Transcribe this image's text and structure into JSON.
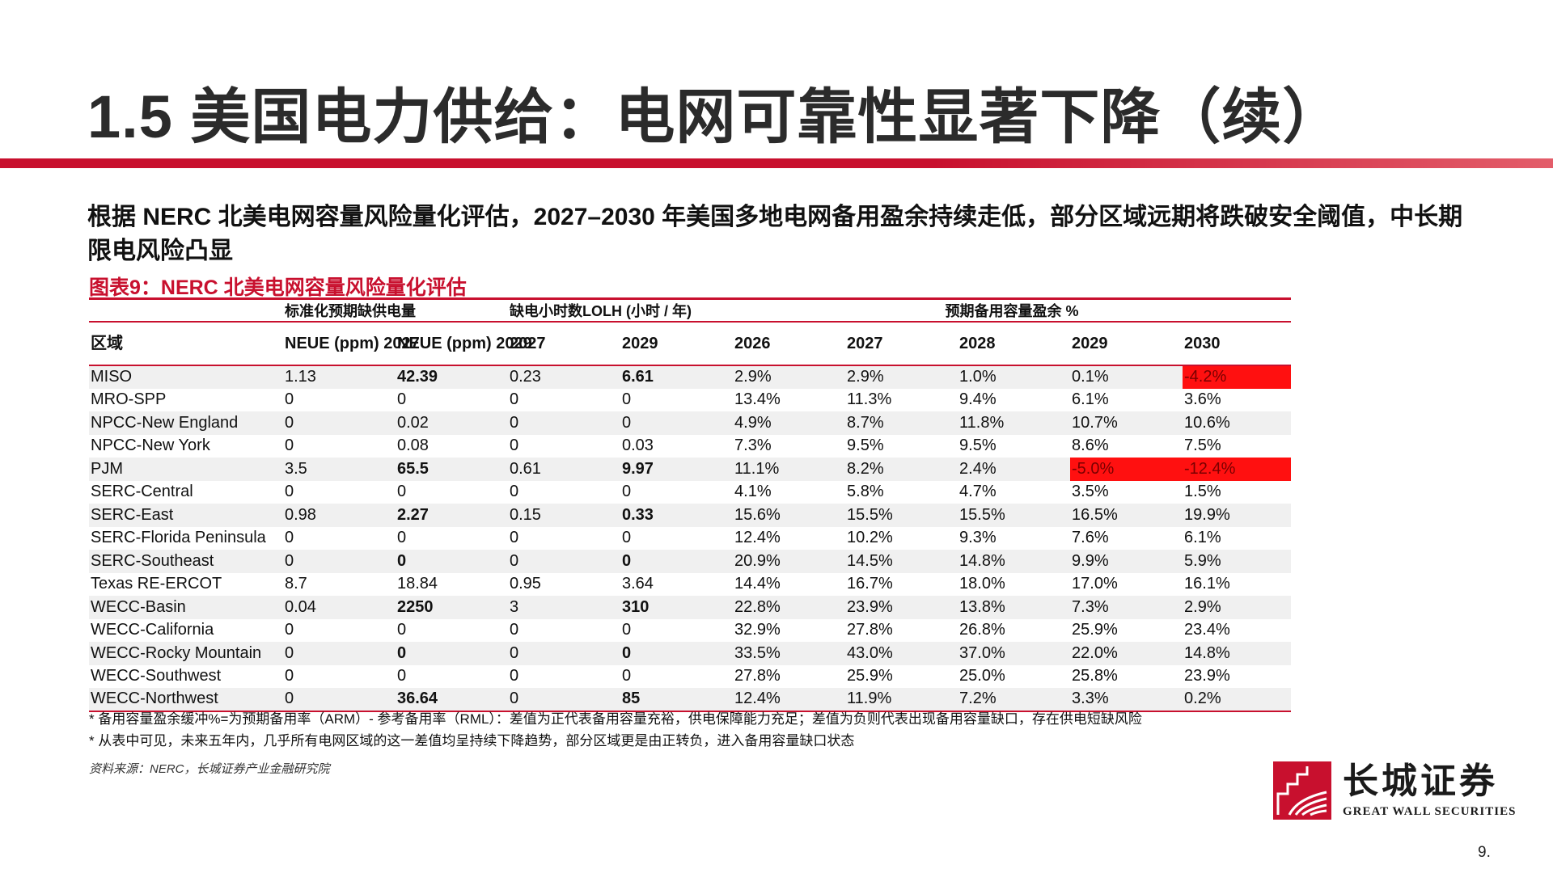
{
  "title": "1.5 美国电力供给：电网可靠性显著下降（续）",
  "subtitle": "根据 NERC 北美电网容量风险量化评估，2027–2030 年美国多地电网备用盈余持续走低，部分区域远期将跌破安全阈值，中长期限电风险凸显",
  "figure_title": "图表9：NERC 北美电网容量风险量化评估",
  "table": {
    "group_headers": {
      "neue": "标准化预期缺供电量",
      "lolh": "缺电小时数LOLH (小时 / 年)",
      "margin": "预期备用容量盈余 %"
    },
    "column_headers": [
      "区域",
      "NEUE (ppm) 2027",
      "NEUE (ppm) 2029",
      "2027",
      "2029",
      "2026",
      "2027",
      "2028",
      "2029",
      "2030"
    ],
    "rows": [
      {
        "region": "MISO",
        "cells": [
          "1.13",
          "42.39",
          "0.23",
          "6.61",
          "2.9%",
          "2.9%",
          "1.0%",
          "0.1%",
          "-4.2%"
        ],
        "bold": [
          1,
          3
        ],
        "negative": [
          8
        ]
      },
      {
        "region": "MRO-SPP",
        "cells": [
          "0",
          "0",
          "0",
          "0",
          "13.4%",
          "11.3%",
          "9.4%",
          "6.1%",
          "3.6%"
        ],
        "bold": [],
        "negative": []
      },
      {
        "region": "NPCC-New England",
        "cells": [
          "0",
          "0.02",
          "0",
          "0",
          "4.9%",
          "8.7%",
          "11.8%",
          "10.7%",
          "10.6%"
        ],
        "bold": [],
        "negative": []
      },
      {
        "region": "NPCC-New York",
        "cells": [
          "0",
          "0.08",
          "0",
          "0.03",
          "7.3%",
          "9.5%",
          "9.5%",
          "8.6%",
          "7.5%"
        ],
        "bold": [],
        "negative": []
      },
      {
        "region": "PJM",
        "cells": [
          "3.5",
          "65.5",
          "0.61",
          "9.97",
          "11.1%",
          "8.2%",
          "2.4%",
          "-5.0%",
          "-12.4%"
        ],
        "bold": [
          1,
          3
        ],
        "negative": [
          7,
          8
        ]
      },
      {
        "region": "SERC-Central",
        "cells": [
          "0",
          "0",
          "0",
          "0",
          "4.1%",
          "5.8%",
          "4.7%",
          "3.5%",
          "1.5%"
        ],
        "bold": [],
        "negative": []
      },
      {
        "region": "SERC-East",
        "cells": [
          "0.98",
          "2.27",
          "0.15",
          "0.33",
          "15.6%",
          "15.5%",
          "15.5%",
          "16.5%",
          "19.9%"
        ],
        "bold": [
          1,
          3
        ],
        "negative": []
      },
      {
        "region": "SERC-Florida Peninsula",
        "cells": [
          "0",
          "0",
          "0",
          "0",
          "12.4%",
          "10.2%",
          "9.3%",
          "7.6%",
          "6.1%"
        ],
        "bold": [],
        "negative": []
      },
      {
        "region": "SERC-Southeast",
        "cells": [
          "0",
          "0",
          "0",
          "0",
          "20.9%",
          "14.5%",
          "14.8%",
          "9.9%",
          "5.9%"
        ],
        "bold": [
          1,
          3
        ],
        "negative": []
      },
      {
        "region": "Texas RE-ERCOT",
        "cells": [
          "8.7",
          "18.84",
          "0.95",
          "3.64",
          "14.4%",
          "16.7%",
          "18.0%",
          "17.0%",
          "16.1%"
        ],
        "bold": [],
        "negative": []
      },
      {
        "region": "WECC-Basin",
        "cells": [
          "0.04",
          "2250",
          "3",
          "310",
          "22.8%",
          "23.9%",
          "13.8%",
          "7.3%",
          "2.9%"
        ],
        "bold": [
          1,
          3
        ],
        "negative": []
      },
      {
        "region": "WECC-California",
        "cells": [
          "0",
          "0",
          "0",
          "0",
          "32.9%",
          "27.8%",
          "26.8%",
          "25.9%",
          "23.4%"
        ],
        "bold": [],
        "negative": []
      },
      {
        "region": "WECC-Rocky Mountain",
        "cells": [
          "0",
          "0",
          "0",
          "0",
          "33.5%",
          "43.0%",
          "37.0%",
          "22.0%",
          "14.8%"
        ],
        "bold": [
          1,
          3
        ],
        "negative": []
      },
      {
        "region": "WECC-Southwest",
        "cells": [
          "0",
          "0",
          "0",
          "0",
          "27.8%",
          "25.9%",
          "25.0%",
          "25.8%",
          "23.9%"
        ],
        "bold": [],
        "negative": []
      },
      {
        "region": "WECC-Northwest",
        "cells": [
          "0",
          "36.64",
          "0",
          "85",
          "12.4%",
          "11.9%",
          "7.2%",
          "3.3%",
          "0.2%"
        ],
        "bold": [
          1,
          3
        ],
        "negative": []
      }
    ]
  },
  "notes": [
    "* 备用容量盈余缓冲%=为预期备用率（ARM）- 参考备用率（RML）：差值为正代表备用容量充裕，供电保障能力充足；差值为负则代表出现备用容量缺口，存在供电短缺风险",
    "* 从表中可见，未来五年内，几乎所有电网区域的这一差值均呈持续下降趋势，部分区域更是由正转负，进入备用容量缺口状态"
  ],
  "source": "资料来源：NERC，长城证券产业金融研究院",
  "logo": {
    "name": "长城证券",
    "english": "GREAT WALL SECURITIES",
    "color": "#c8102e"
  },
  "page_number": "9.",
  "colors": {
    "accent": "#c8102e",
    "negative_fill": "#ff1010",
    "row_shade": "#f0f0f0"
  }
}
